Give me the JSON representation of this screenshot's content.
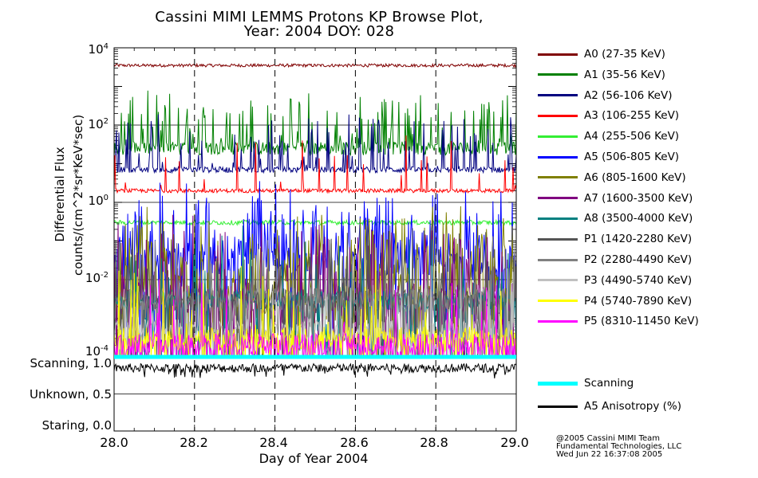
{
  "chart_data": [
    {
      "type": "line",
      "title": "Cassini MIMI LEMMS Protons KP Browse Plot,",
      "subtitle": "Year: 2004 DOY: 028",
      "ylabel": [
        "Differential Flux",
        "counts/(cm^2*sr*KeV*sec)"
      ],
      "xlabel": "Day of Year 2004",
      "xlim": [
        28.0,
        29.0
      ],
      "x_ticks": [
        "28.0",
        "28.2",
        "28.4",
        "28.6",
        "28.8",
        "29.0"
      ],
      "yscale": "log",
      "ylim": [
        0.0001,
        10000
      ],
      "y_ticks": [
        {
          "base": "10",
          "exp": "4"
        },
        {
          "base": "10",
          "exp": "2"
        },
        {
          "base": "10",
          "exp": "0"
        },
        {
          "base": "10",
          "exp": "-2"
        },
        {
          "base": "10",
          "exp": "-4"
        }
      ],
      "series": [
        {
          "name": "A0 (27-35 KeV)",
          "color": "#800000",
          "base": 3500,
          "spread": 0.08,
          "spikes": 0.0
        },
        {
          "name": "A1 (35-56 KeV)",
          "color": "#008000",
          "base": 25,
          "spread": 0.35,
          "spikes": 0.22
        },
        {
          "name": "A2 (56-106 KeV)",
          "color": "#000080",
          "base": 7,
          "spread": 0.15,
          "spikes": 0.15
        },
        {
          "name": "A3 (106-255 KeV)",
          "color": "#ff0000",
          "base": 2.0,
          "spread": 0.1,
          "spikes": 0.06
        },
        {
          "name": "A4 (255-506 KeV)",
          "color": "#33ee33",
          "base": 0.3,
          "spread": 0.12,
          "spikes": 0.0
        },
        {
          "name": "A5 (506-805 KeV)",
          "color": "#0000ff",
          "base": 0.03,
          "spread": 0.7,
          "spikes": 0.4
        },
        {
          "name": "A6 (805-1600 KeV)",
          "color": "#808000",
          "base": 0.005,
          "spread": 0.9,
          "spikes": 0.5
        },
        {
          "name": "A7 (1600-3500 KeV)",
          "color": "#800080",
          "base": 0.003,
          "spread": 0.9,
          "spikes": 0.3
        },
        {
          "name": "A8 (3500-4000 KeV)",
          "color": "#008080",
          "base": 0.003,
          "spread": 0.5,
          "spikes": 0.1
        },
        {
          "name": "P1 (1420-2280 KeV)",
          "color": "#555555",
          "base": 0.003,
          "spread": 0.6,
          "spikes": 0.1
        },
        {
          "name": "P2 (2280-4490 KeV)",
          "color": "#808080",
          "base": 0.003,
          "spread": 0.6,
          "spikes": 0.1
        },
        {
          "name": "P3 (4490-5740 KeV)",
          "color": "#c0c0c0",
          "base": 0.0005,
          "spread": 0.6,
          "spikes": 0.1
        },
        {
          "name": "P4 (5740-7890 KeV)",
          "color": "#ffff00",
          "base": 0.0003,
          "spread": 0.6,
          "spikes": 0.1
        },
        {
          "name": "P5 (8310-11450 KeV)",
          "color": "#ff00ff",
          "base": 0.0002,
          "spread": 0.6,
          "spikes": 0.05
        }
      ]
    },
    {
      "type": "line",
      "xlim": [
        28.0,
        29.0
      ],
      "ylim": [
        0.0,
        1.0
      ],
      "y_ticks": [
        "Scanning, 1.0",
        "Unknown, 0.5",
        "Staring, 0.0"
      ],
      "series": [
        {
          "name": "Scanning",
          "color": "#00ffff",
          "value": 1.0
        },
        {
          "name": "A5 Anisotropy (%)",
          "color": "#000000",
          "value": 0.85
        }
      ]
    }
  ],
  "credits": [
    "@2005 Cassini MIMI Team",
    "Fundamental Technologies, LLC",
    "Wed Jun 22 16:37:08 2005"
  ]
}
